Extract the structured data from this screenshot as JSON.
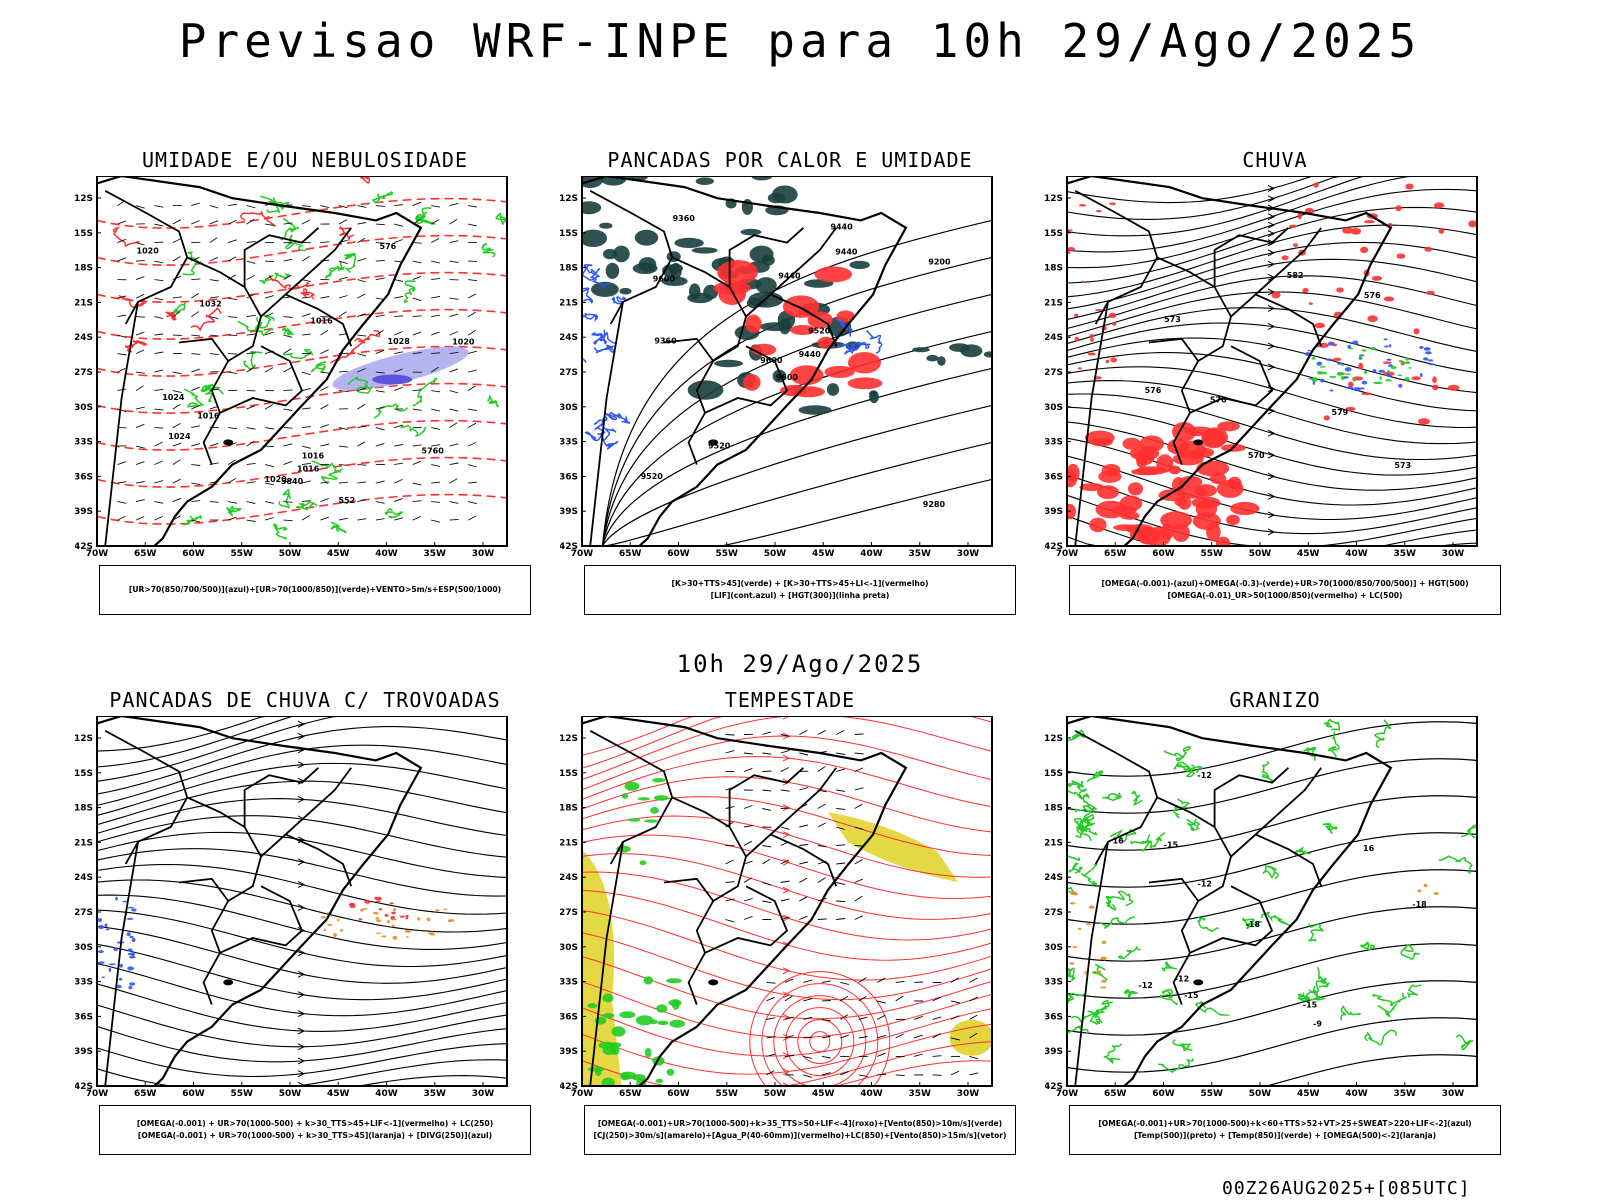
{
  "header": {
    "title": "Previsao WRF-INPE  para 10h 29/Ago/2025"
  },
  "mid_label": "10h 29/Ago/2025",
  "footer": "00Z26AUG2025+[085UTC]",
  "colors": {
    "blue": "#2f55ff",
    "green": "#22cc22",
    "red": "#ff3030",
    "dark_teal": "#1a3e3e",
    "light_purple": "#a9a6ee",
    "yellow": "#e3d63a",
    "orange": "#ee8822",
    "black": "#000000"
  },
  "axes": {
    "lat_labels": [
      "12S",
      "15S",
      "18S",
      "21S",
      "24S",
      "27S",
      "30S",
      "33S",
      "36S",
      "39S",
      "42S"
    ],
    "lon_labels": [
      "70W",
      "65W",
      "60W",
      "55W",
      "50W",
      "45W",
      "40W",
      "35W",
      "30W"
    ]
  },
  "panels": [
    {
      "title": "UMIDADE E/OU NEBULOSIDADE",
      "legend": [
        "[UR>70(850/700/500)](azul)+[UR>70(1000/850)](verde)+VENTO>5m/s+ESP(500/1000)"
      ],
      "contour_labels": [
        "1020",
        "1016",
        "1016",
        "1020",
        "1020",
        "1024",
        "1016",
        "1024",
        "1028",
        "1032",
        "1016",
        "5760",
        "5840",
        "552",
        "576"
      ]
    },
    {
      "title": "PANCADAS POR CALOR E UMIDADE",
      "legend": [
        "[K>30+TTS>45](verde) + [K>30+TTS>45+LI<-1](vermelho)",
        "[LIF](cont.azul) + [HGT(300)](linha preta)"
      ],
      "contour_labels": [
        "9600",
        "9600",
        "9600",
        "9520",
        "9520",
        "9520",
        "9440",
        "9440",
        "9440",
        "9440",
        "9360",
        "9280",
        "9360",
        "9200"
      ]
    },
    {
      "title": "CHUVA",
      "legend": [
        "[OMEGA(-0.001)-(azul)+OMEGA(-0.3)-(verde)+UR>70(1000/850/700/500)] + HGT(500)",
        "[OMEGA(-0.01)_UR>50(1000/850)(vermelho) + LC(500)"
      ],
      "contour_labels": [
        "582",
        "579",
        "576",
        "576",
        "573",
        "570",
        "576",
        "573"
      ]
    },
    {
      "title": "PANCADAS DE CHUVA C/ TROVOADAS",
      "legend": [
        "[OMEGA(-0.001) + UR>70(1000-500) + k>30_TTS>45+LIF<-1](vermelho) + LC(250)",
        "[OMEGA(-0.001) + UR>70(1000-500) + k>30_TTS>45](laranja) + [DIVG(250)](azul)"
      ],
      "contour_labels": []
    },
    {
      "title": "TEMPESTADE",
      "legend": [
        "[OMEGA(-0.001)+UR>70(1000-500)+k>35_TTS>50+LIF<-4](roxo)+[Vento(850)>10m/s](verde)",
        "[CJ(250)>30m/s](amarelo)+[Agua_P(40-60mm)](vermelho)+LC(850)+[Vento(850)>15m/s](vetor)"
      ],
      "contour_labels": []
    },
    {
      "title": "GRANIZO",
      "legend": [
        "[OMEGA(-0.001)+UR>70(1000-500)+k<60+TTS>52+VT>25+SWEAT>220+LIF<-2](azul)",
        "[Temp(500)](preto) + [Temp(850)](verde) + [OMEGA(500)<-2](laranja)"
      ],
      "contour_labels": [
        "-9",
        "-12",
        "-12",
        "-15",
        "16",
        "-15",
        "-18",
        "-12",
        "-18",
        "-15",
        "-12",
        "16"
      ]
    }
  ]
}
